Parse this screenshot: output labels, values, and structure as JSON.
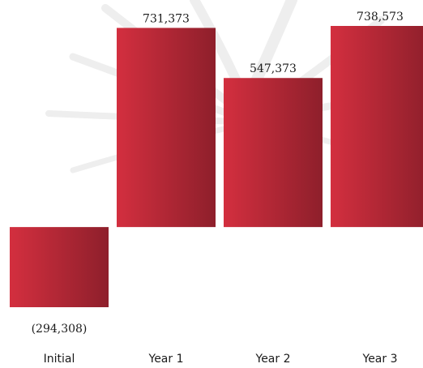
{
  "chart_data": {
    "type": "bar",
    "categories": [
      "Initial",
      "Year 1",
      "Year 2",
      "Year 3"
    ],
    "values": [
      -294308,
      731373,
      547373,
      738573
    ],
    "data_labels": [
      "(294,308)",
      "731,373",
      "547,373",
      "738,573"
    ],
    "title": "",
    "xlabel": "",
    "ylabel": "",
    "ylim": [
      -294308,
      738573
    ],
    "grid": false,
    "legend": "none",
    "colors": {
      "bar_light": "#d32f3f",
      "bar_dark": "#8e1f2b"
    }
  }
}
